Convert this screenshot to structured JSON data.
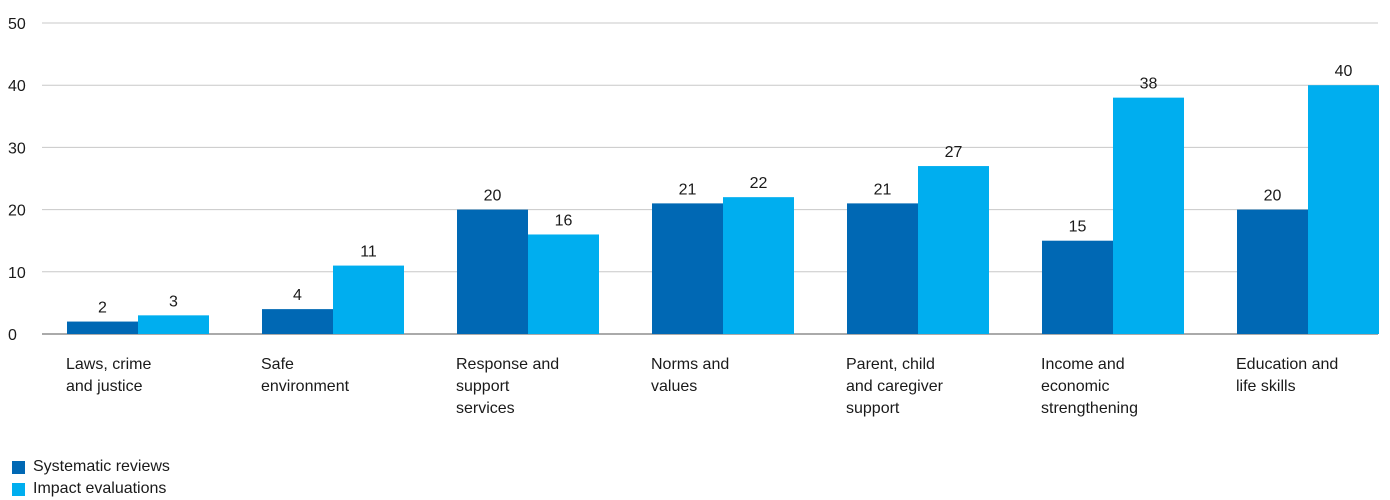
{
  "chart_data": {
    "type": "bar",
    "categories": [
      [
        "Laws, crime",
        "and justice"
      ],
      [
        "Safe",
        "environment"
      ],
      [
        "Response and",
        "support",
        "services"
      ],
      [
        "Norms and",
        "values"
      ],
      [
        "Parent, child",
        "and caregiver",
        "support"
      ],
      [
        "Income and",
        "economic",
        "strengthening"
      ],
      [
        "Education and",
        "life skills"
      ]
    ],
    "series": [
      {
        "name": "Systematic reviews",
        "color": "#0068b4",
        "values": [
          2,
          4,
          20,
          21,
          21,
          15,
          20
        ]
      },
      {
        "name": "Impact evaluations",
        "color": "#00aeef",
        "values": [
          3,
          11,
          16,
          22,
          27,
          38,
          40
        ]
      }
    ],
    "ylim": [
      0,
      50
    ],
    "yticks": [
      0,
      10,
      20,
      30,
      40,
      50
    ],
    "grid": true,
    "legend_position": "bottom-left",
    "title": "",
    "xlabel": "",
    "ylabel": ""
  }
}
